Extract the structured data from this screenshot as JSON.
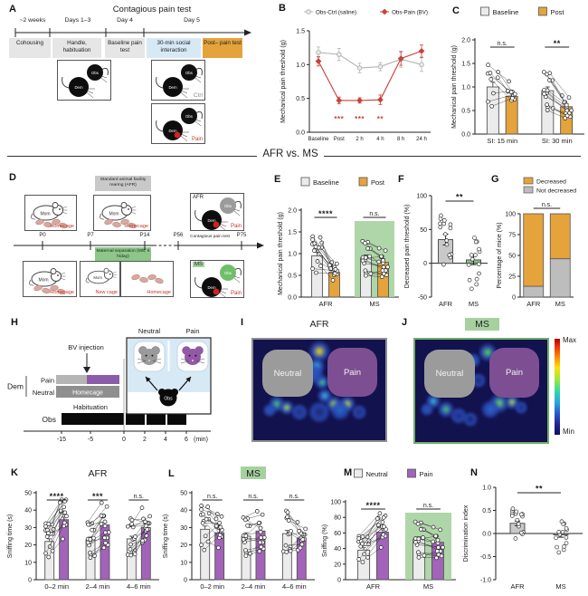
{
  "glyphs": {
    "obs": "Obs",
    "dem": "Dem",
    "mom": "Mom"
  },
  "colors": {
    "orange": "#e5a33c",
    "light_gray_bar": "#ebebeb",
    "purple_bar": "#a263b8",
    "red": "#c8423a",
    "gray_line": "#b4b4b4",
    "green_highlight": "#a6d19f",
    "green_bar": "#8fbf8a",
    "heat_bg": "#12124e",
    "zone_gray": "#9b9b9b",
    "zone_purple": "#7d4e92",
    "blue_bg": "#d8e9f6"
  },
  "divider": {
    "label": "AFR vs. MS"
  },
  "colorbar": {
    "max": "Max",
    "min": "Min"
  },
  "panels": {
    "A": {
      "letter": "A",
      "title": "Contagious pain test",
      "periods": [
        "~2 weeks",
        "Days 1–3",
        "Day 4",
        "Day 5"
      ],
      "stages": [
        {
          "text": "Cohousing",
          "bg": "#e6e6e6"
        },
        {
          "text": "Handle, habituation",
          "bg": "#e6e6e6"
        },
        {
          "text": "Baseline pain test",
          "bg": "#e6e6e6"
        },
        {
          "text": "30-min social interaction",
          "bg": "#d8e9f6"
        },
        {
          "text": "Post– pain test",
          "bg": "#e5a33c"
        }
      ],
      "ctrl": "Ctrl",
      "pain": "Pain"
    },
    "B": {
      "letter": "B",
      "type": "line",
      "ylabel": "Mechanical pain threshold (g)",
      "ylim": [
        0,
        1.5
      ],
      "yticks": [
        "0.0",
        "0.5",
        "1.0",
        "1.5"
      ],
      "categories": [
        "Baseline",
        "Post",
        "2 h",
        "4 h",
        "8 h",
        "24 h"
      ],
      "series": [
        {
          "name": "Obs-Ctrl (saline)",
          "color": "#b4b4b4",
          "marker": "circle",
          "values": [
            1.18,
            1.15,
            0.95,
            0.97,
            1.08,
            1.0
          ],
          "errors": [
            0.08,
            0.09,
            0.07,
            0.06,
            0.12,
            0.1
          ]
        },
        {
          "name": "Obs-Pain (BV)",
          "color": "#c8423a",
          "marker": "diamond",
          "values": [
            1.05,
            0.47,
            0.47,
            0.48,
            1.09,
            1.2
          ],
          "errors": [
            0.07,
            0.05,
            0.04,
            0.07,
            0.1,
            0.09
          ]
        }
      ],
      "sig": [
        {
          "i": 1,
          "t": "***"
        },
        {
          "i": 2,
          "t": "***"
        },
        {
          "i": 3,
          "t": "**"
        }
      ],
      "sig_color": "#c8423a"
    },
    "C": {
      "letter": "C",
      "type": "pairedBars",
      "ylabel": "Mechanical pain threshold (g)",
      "ylim": [
        0,
        2
      ],
      "yticks": [
        "0.0",
        "0.5",
        "1.0",
        "1.5",
        "2.0"
      ],
      "legend": [
        {
          "label": "Baseline",
          "color": "#ebebeb"
        },
        {
          "label": "Post",
          "color": "#e5a33c"
        }
      ],
      "bar_colors": [
        "#ebebeb",
        "#e5a33c"
      ],
      "groups": [
        {
          "label": "SI: 15 min",
          "sig": "n.s.",
          "values": [
            1.0,
            0.8
          ],
          "errors": [
            0.1,
            0.12
          ],
          "n": 9
        },
        {
          "label": "SI: 30 min",
          "sig": "**",
          "values": [
            0.92,
            0.58
          ],
          "errors": [
            0.08,
            0.06
          ],
          "n": 14
        }
      ]
    },
    "D": {
      "letter": "D",
      "afr_box": "Standard animal facility rearing (AFR)",
      "ms_box": "Maternal separation (MS; 6 h/day)",
      "ticks": [
        "P0",
        "P7",
        "P14",
        "P56",
        "P75"
      ],
      "test": "Contagious pain test",
      "homecage": "Homecage",
      "newcage": "New cage",
      "afr": "AFR",
      "ms": "MS",
      "pain": "Pain"
    },
    "E": {
      "letter": "E",
      "type": "pairedBars",
      "ylabel": "Mechanical pain threshold (g)",
      "ylim": [
        0,
        2
      ],
      "yticks": [
        "0.0",
        "0.5",
        "1.0",
        "1.5",
        "2.0"
      ],
      "legend": [
        {
          "label": "Baseline",
          "color": "#ebebeb"
        },
        {
          "label": "Post",
          "color": "#e5a33c"
        }
      ],
      "bar_colors": [
        "#ebebeb",
        "#e5a33c"
      ],
      "groups": [
        {
          "label": "AFR",
          "sig": "****",
          "values": [
            0.95,
            0.57
          ],
          "errors": [
            0.08,
            0.06
          ],
          "n": 15
        },
        {
          "label": "MS",
          "sig": "n.s.",
          "values": [
            0.9,
            0.8
          ],
          "errors": [
            0.07,
            0.08
          ],
          "n": 15,
          "highlight": true
        }
      ]
    },
    "F": {
      "letter": "F",
      "type": "scatterBars",
      "ylabel": "Decreased pain threshold (%)",
      "ylim": [
        -50,
        100
      ],
      "yticks": [
        "-50",
        "0",
        "50",
        "100"
      ],
      "sig": "**",
      "spread": 0.6,
      "groups": [
        {
          "label": "AFR",
          "value": 35,
          "error": 8,
          "color": "#c9c9c9",
          "n": 15
        },
        {
          "label": "MS",
          "value": 5,
          "error": 7,
          "color": "#8fbf8a",
          "n": 15
        }
      ]
    },
    "G": {
      "letter": "G",
      "type": "stackedBars",
      "ylabel": "Percentage of mice (%)",
      "ylim": [
        0,
        100
      ],
      "yticks": [
        "0",
        "25",
        "50",
        "75",
        "100"
      ],
      "legend": [
        {
          "label": "Decreased",
          "color": "#e5a33c"
        },
        {
          "label": "Not decreased",
          "color": "#bdbdbd"
        }
      ],
      "sig": "n.s.",
      "categories": [
        "AFR",
        "MS"
      ],
      "series": [
        {
          "name": "Not decreased",
          "color": "#bdbdbd",
          "values": [
            13,
            46
          ]
        },
        {
          "name": "Decreased",
          "color": "#e5a33c",
          "values": [
            87,
            54
          ]
        }
      ]
    },
    "H": {
      "letter": "H",
      "bv": "BV injection",
      "dem": "Dem",
      "obs": "Obs",
      "pain": "Pain",
      "neutral": "Neutral",
      "homecage": "Homecage",
      "habituation": "Habituation",
      "xticks": [
        "-15",
        "-5",
        "0",
        "2",
        "4",
        "6"
      ],
      "xunit": "(min)"
    },
    "I": {
      "letter": "I",
      "title": "AFR",
      "zones": [
        "Neutral",
        "Pain"
      ],
      "border": "#8f8f8f",
      "hotspots": [
        [
          50,
          12,
          26,
          "#e8d830"
        ],
        [
          48,
          26,
          20,
          "#38b8d8"
        ],
        [
          52,
          42,
          18,
          "#48c888"
        ],
        [
          46,
          34,
          24,
          "#2858c0"
        ],
        [
          54,
          56,
          18,
          "#38b8d8"
        ],
        [
          18,
          64,
          20,
          "#48c878"
        ],
        [
          25,
          68,
          18,
          "#a8dc50"
        ],
        [
          12,
          70,
          16,
          "#2858c0"
        ],
        [
          35,
          72,
          20,
          "#203088"
        ],
        [
          61,
          64,
          20,
          "#a8dc50"
        ],
        [
          71,
          64,
          20,
          "#c8e448"
        ],
        [
          66,
          70,
          24,
          "#2868c8"
        ],
        [
          50,
          72,
          26,
          "#1c2878"
        ],
        [
          80,
          72,
          18,
          "#202c80"
        ]
      ]
    },
    "J": {
      "letter": "J",
      "title": "MS",
      "title_bg": "#a6d19f",
      "zones": [
        "Neutral",
        "Pain"
      ],
      "border": "#6fae66",
      "hotspots": [
        [
          55,
          12,
          22,
          "#58d858"
        ],
        [
          44,
          20,
          18,
          "#2868c8"
        ],
        [
          48,
          40,
          18,
          "#1c2878"
        ],
        [
          14,
          60,
          18,
          "#38b8d0"
        ],
        [
          23,
          68,
          20,
          "#48c878"
        ],
        [
          9,
          68,
          16,
          "#2858b8"
        ],
        [
          33,
          74,
          20,
          "#202c88"
        ],
        [
          64,
          62,
          24,
          "#68d868"
        ],
        [
          73,
          61,
          18,
          "#a8dc50"
        ],
        [
          57,
          68,
          22,
          "#2868c8"
        ],
        [
          80,
          66,
          16,
          "#203088"
        ],
        [
          42,
          78,
          18,
          "#1a2470"
        ]
      ]
    },
    "K": {
      "letter": "K",
      "type": "pairedBars",
      "title": "AFR",
      "ylabel": "Sniffing time (s)",
      "ylim": [
        0,
        50
      ],
      "yticks": [
        "0",
        "10",
        "20",
        "30",
        "40",
        "50"
      ],
      "bar_colors": [
        "#ececec",
        "#a263b8"
      ],
      "groups": [
        {
          "label": "0–2 min",
          "sig": "****",
          "values": [
            22,
            34.5
          ],
          "errors": [
            1.5,
            1.5
          ],
          "n": 16
        },
        {
          "label": "2–4 min",
          "sig": "***",
          "values": [
            23,
            31.5
          ],
          "errors": [
            1.5,
            1.5
          ],
          "n": 16
        },
        {
          "label": "4–6 min",
          "sig": "n.s.",
          "values": [
            23.5,
            30
          ],
          "errors": [
            1.5,
            2
          ],
          "n": 16
        }
      ]
    },
    "L": {
      "letter": "L",
      "type": "pairedBars",
      "title": "MS",
      "title_bg": "#a6d19f",
      "ylabel": "Sniffing time (s)",
      "ylim": [
        0,
        50
      ],
      "yticks": [
        "0",
        "10",
        "20",
        "30",
        "40",
        "50"
      ],
      "bar_colors": [
        "#ececec",
        "#a263b8"
      ],
      "groups": [
        {
          "label": "0–2 min",
          "sig": "n.s.",
          "values": [
            29,
            27
          ],
          "errors": [
            1.8,
            2
          ],
          "n": 14
        },
        {
          "label": "2–4 min",
          "sig": "n.s.",
          "values": [
            25,
            28
          ],
          "errors": [
            2,
            1.8
          ],
          "n": 14
        },
        {
          "label": "4–6 min",
          "sig": "n.s.",
          "values": [
            26.5,
            24
          ],
          "errors": [
            1.8,
            2
          ],
          "n": 14
        }
      ]
    },
    "M": {
      "letter": "M",
      "type": "pairedBars",
      "ylabel": "Sniffing (%)",
      "ylim": [
        0,
        100
      ],
      "yticks": [
        "0",
        "20",
        "40",
        "60",
        "80",
        "100"
      ],
      "legend": [
        {
          "label": "Neutral",
          "color": "#ececec"
        },
        {
          "label": "Pain",
          "color": "#a263b8"
        }
      ],
      "bar_colors": [
        "#ececec",
        "#a263b8"
      ],
      "groups": [
        {
          "label": "AFR",
          "sig": "****",
          "values": [
            38,
            61
          ],
          "errors": [
            3,
            3
          ],
          "n": 16
        },
        {
          "label": "MS",
          "sig": "n.s.",
          "values": [
            52,
            48
          ],
          "errors": [
            3,
            4
          ],
          "n": 15,
          "highlight": true
        }
      ]
    },
    "N": {
      "letter": "N",
      "type": "scatterBars",
      "ylabel": "Discrimination index",
      "ylim": [
        -1,
        1
      ],
      "yticks": [
        "-1.0",
        "-0.5",
        "0.0",
        "0.5",
        "1.0"
      ],
      "sig": "**",
      "spread": 0.4,
      "groups": [
        {
          "label": "AFR",
          "value": 0.22,
          "error": 0.05,
          "color": "#c9c9c9",
          "n": 16
        },
        {
          "label": "MS",
          "value": -0.03,
          "error": 0.05,
          "color": "#8fbf8a",
          "n": 15
        }
      ]
    }
  }
}
